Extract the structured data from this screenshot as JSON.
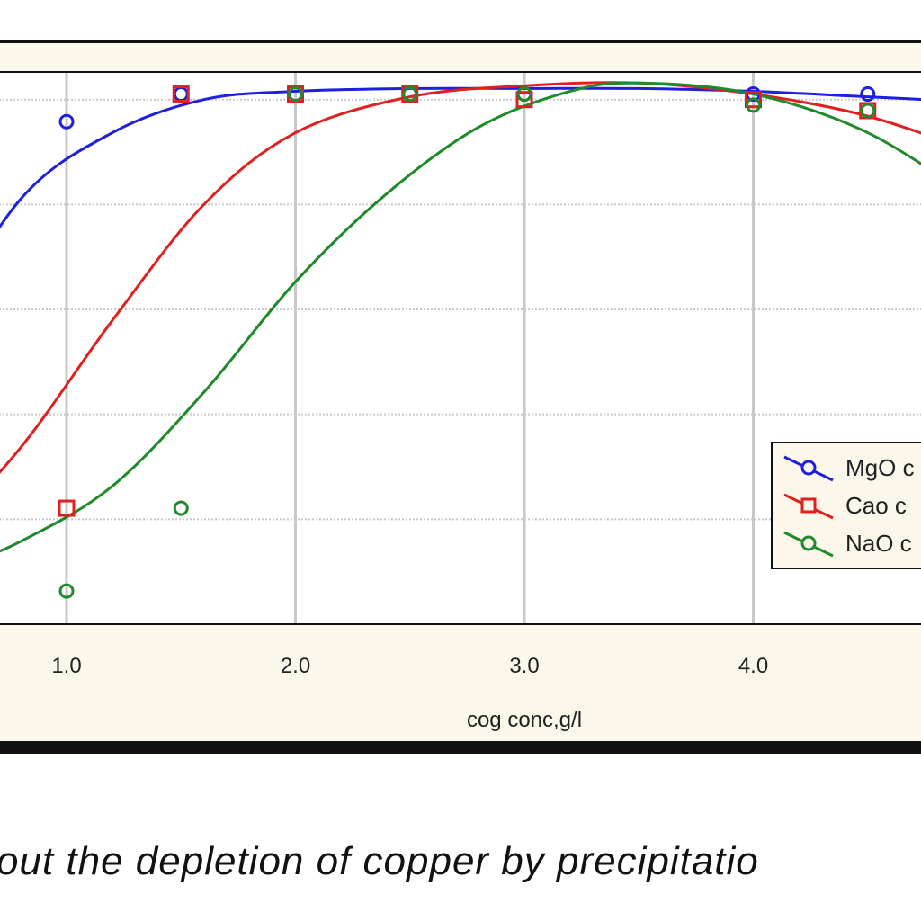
{
  "chart_data": {
    "type": "line",
    "xlabel": "cog conc,g/l",
    "ylabel": "",
    "title": "",
    "xlim": [
      0.0,
      5.7
    ],
    "ylim": [
      0,
      100
    ],
    "x_ticks": [
      "1.0",
      "2.0",
      "3.0",
      "4.0"
    ],
    "x_tick_values": [
      1.0,
      2.0,
      3.0,
      4.0
    ],
    "y_gridlines": [
      19,
      38,
      57,
      76,
      95
    ],
    "grid": true,
    "legend_position": "right",
    "series": [
      {
        "name": "MgO c",
        "color": "#1f1fe0",
        "marker": "circle",
        "points": [
          [
            1.0,
            91
          ],
          [
            1.5,
            96
          ],
          [
            2.0,
            96
          ],
          [
            2.5,
            96
          ],
          [
            3.0,
            96
          ],
          [
            4.0,
            96
          ],
          [
            4.5,
            96
          ]
        ],
        "curve": [
          [
            0.4,
            51
          ],
          [
            0.8,
            77
          ],
          [
            1.2,
            89
          ],
          [
            1.6,
            95
          ],
          [
            2.0,
            96.5
          ],
          [
            2.5,
            97
          ],
          [
            3.0,
            97
          ],
          [
            3.5,
            97
          ],
          [
            4.0,
            96.5
          ],
          [
            4.5,
            95.5
          ],
          [
            5.0,
            94.5
          ]
        ]
      },
      {
        "name": "Cao c",
        "color": "#e01f1f",
        "marker": "square",
        "points": [
          [
            1.0,
            21
          ],
          [
            1.5,
            96
          ],
          [
            2.0,
            96
          ],
          [
            2.5,
            96
          ],
          [
            3.0,
            95
          ],
          [
            4.0,
            95
          ],
          [
            4.5,
            93
          ]
        ],
        "curve": [
          [
            0.4,
            14
          ],
          [
            0.8,
            32
          ],
          [
            1.2,
            55
          ],
          [
            1.6,
            76
          ],
          [
            2.0,
            89
          ],
          [
            2.5,
            95.5
          ],
          [
            3.0,
            97.5
          ],
          [
            3.5,
            98
          ],
          [
            4.0,
            96
          ],
          [
            4.5,
            92
          ],
          [
            5.0,
            85
          ]
        ]
      },
      {
        "name": "NaO c",
        "color": "#1f8a2a",
        "marker": "circle",
        "points": [
          [
            1.0,
            6
          ],
          [
            1.5,
            21
          ],
          [
            2.0,
            96
          ],
          [
            2.5,
            96
          ],
          [
            3.0,
            96
          ],
          [
            4.0,
            94
          ],
          [
            4.5,
            93
          ]
        ],
        "curve": [
          [
            0.4,
            8
          ],
          [
            0.8,
            15
          ],
          [
            1.2,
            25
          ],
          [
            1.6,
            42
          ],
          [
            2.0,
            62
          ],
          [
            2.4,
            78
          ],
          [
            2.8,
            90
          ],
          [
            3.2,
            96.5
          ],
          [
            3.5,
            98
          ],
          [
            4.0,
            96
          ],
          [
            4.5,
            89
          ],
          [
            5.0,
            76
          ]
        ]
      }
    ]
  },
  "caption": "out the depletion of copper by precipitatio"
}
